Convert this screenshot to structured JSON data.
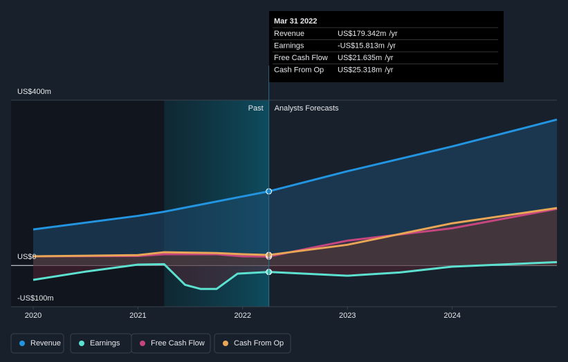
{
  "chart_data": {
    "type": "line",
    "xlim": [
      2020,
      2025
    ],
    "xticks": [
      2020,
      2021,
      2022,
      2023,
      2024
    ],
    "ylim": [
      -100,
      400
    ],
    "yticks": [
      {
        "value": -100,
        "label": "-US$100m"
      },
      {
        "value": 0,
        "label": "US$0"
      },
      {
        "value": 400,
        "label": "US$400m"
      }
    ],
    "past_label": "Past",
    "forecast_label": "Analysts Forecasts",
    "series": [
      {
        "name": "Revenue",
        "color": "#2394df",
        "x": [
          2020,
          2021,
          2021.25,
          2022,
          2022.25,
          2023,
          2024,
          2025
        ],
        "values": [
          87,
          120,
          130,
          167,
          179.342,
          228,
          288,
          353
        ]
      },
      {
        "name": "Earnings",
        "color": "#5ce0cf",
        "x": [
          2020,
          2020.5,
          2021,
          2021.25,
          2021.45,
          2021.6,
          2021.75,
          2021.95,
          2022.25,
          2023,
          2023.5,
          2024,
          2025
        ],
        "values": [
          -35,
          -15,
          2,
          3,
          -47,
          -57,
          -57,
          -20,
          -15.813,
          -25,
          -17,
          -3,
          8
        ]
      },
      {
        "name": "Free Cash Flow",
        "color": "#c5467f",
        "x": [
          2020,
          2021,
          2021.25,
          2021.75,
          2022,
          2022.25,
          2023,
          2024,
          2025
        ],
        "values": [
          22,
          23,
          27,
          27,
          22,
          21.635,
          60,
          90,
          137
        ]
      },
      {
        "name": "Cash From Op",
        "color": "#e8a656",
        "x": [
          2020,
          2021,
          2021.25,
          2021.75,
          2022,
          2022.25,
          2023,
          2024,
          2025
        ],
        "values": [
          22,
          25,
          32,
          30,
          27,
          25.318,
          50,
          102,
          139
        ]
      }
    ],
    "tooltip": {
      "date": "Mar 31 2022",
      "rows": [
        {
          "label": "Revenue",
          "value": "US$179.342m",
          "unit": "/yr",
          "color": "#2394df"
        },
        {
          "label": "Earnings",
          "value": "-US$15.813m",
          "unit": "/yr",
          "color": "#e64c4c"
        },
        {
          "label": "Free Cash Flow",
          "value": "US$21.635m",
          "unit": "/yr",
          "color": "#c5467f"
        },
        {
          "label": "Cash From Op",
          "value": "US$25.318m",
          "unit": "/yr",
          "color": "#e8a656"
        }
      ]
    }
  }
}
